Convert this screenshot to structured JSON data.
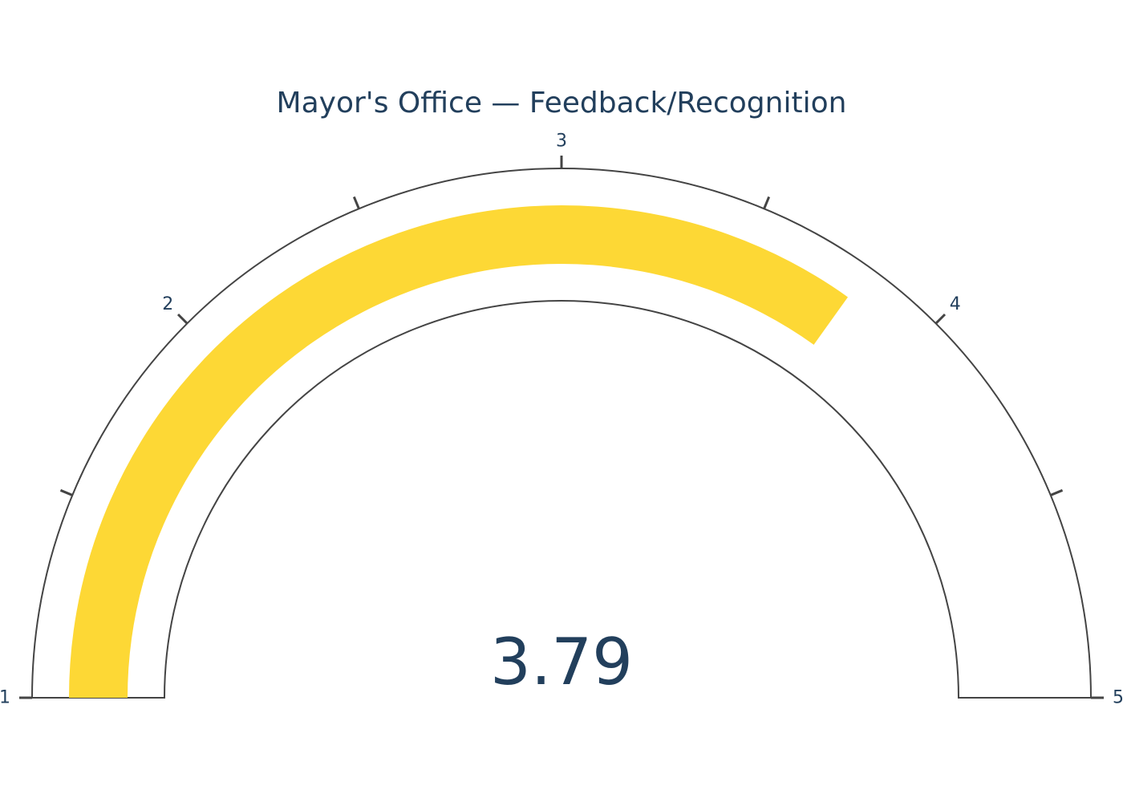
{
  "chart_data": {
    "type": "gauge",
    "title": "Mayor's Office — Feedback/Recognition",
    "value": 3.79,
    "value_text": "3.79",
    "range": [
      1,
      5
    ],
    "major_ticks": [
      1,
      2,
      3,
      4,
      5
    ],
    "tick_labels": [
      "1",
      "2",
      "3",
      "4",
      "5"
    ],
    "minor_ticks": [
      1.5,
      2.5,
      3.5,
      4.5
    ],
    "colors": {
      "bar": "#fdd835",
      "text": "#223f5c",
      "outline": "#444444"
    }
  }
}
